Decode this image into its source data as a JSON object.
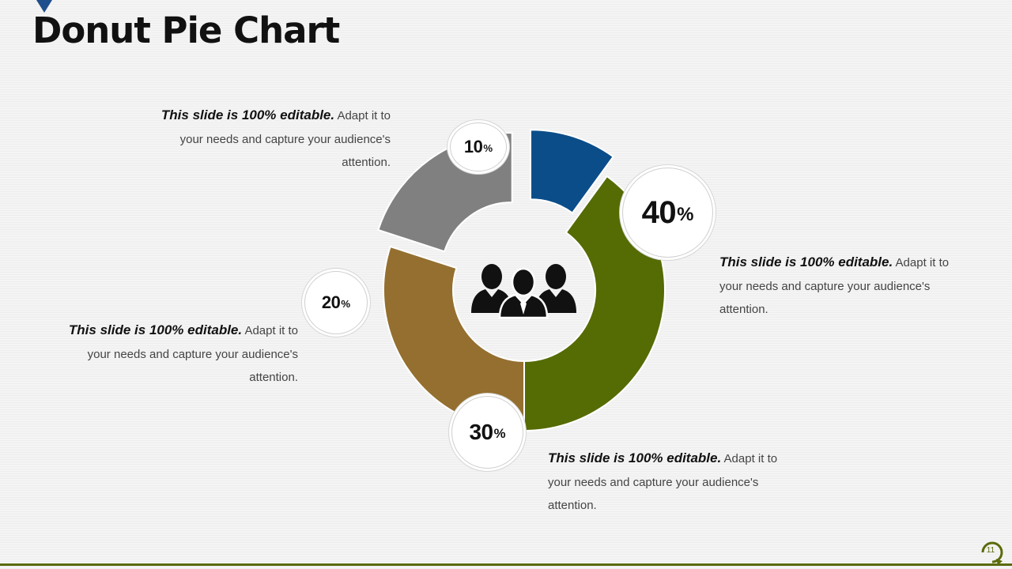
{
  "slide": {
    "title": "Donut Pie Chart",
    "page_number": "11"
  },
  "colors": {
    "title_marker": "#1f4e8c",
    "bottom_rule": "#5a6b0a",
    "center_icon": "#111111"
  },
  "icons": {
    "center": "people-group-icon",
    "page_badge": "circular-arrow-icon",
    "title_marker": "triangle-down-icon"
  },
  "chart_data": {
    "type": "pie",
    "donut": true,
    "categories": [
      "10%",
      "40%",
      "30%",
      "20%"
    ],
    "values": [
      10,
      40,
      30,
      20
    ],
    "colors": [
      "#0b4d89",
      "#556b04",
      "#946f2f",
      "#808080"
    ],
    "exploded_slices": [
      "10%",
      "20%"
    ],
    "data_labels": [
      {
        "value": "10",
        "unit": "%"
      },
      {
        "value": "40",
        "unit": "%"
      },
      {
        "value": "30",
        "unit": "%"
      },
      {
        "value": "20",
        "unit": "%"
      }
    ]
  },
  "captions": [
    {
      "bold": "This slide is 100% editable.",
      "rest": " Adapt it to your needs and capture your audience's attention."
    },
    {
      "bold": "This slide is 100% editable.",
      "rest": " Adapt it to your needs and capture your audience's attention."
    },
    {
      "bold": "This slide is 100% editable.",
      "rest": " Adapt it to your needs and capture your audience's attention."
    },
    {
      "bold": "This slide is 100% editable.",
      "rest": " Adapt it to your needs and capture your audience's attention."
    }
  ]
}
